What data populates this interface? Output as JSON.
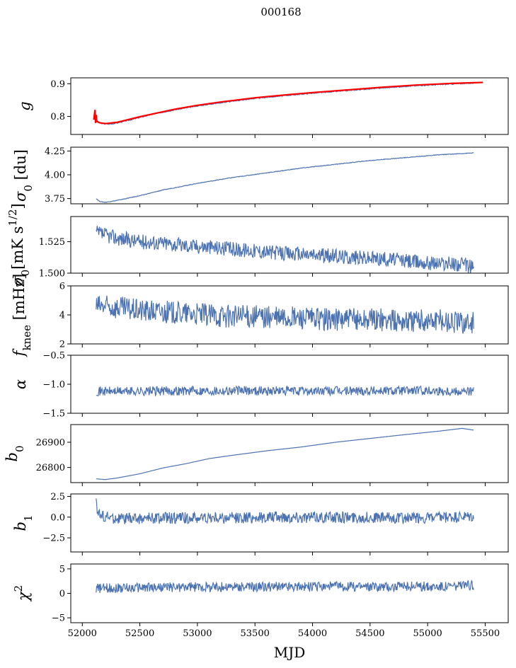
{
  "figure": {
    "title": "000168",
    "xlabel": "MJD",
    "colors": {
      "series": "#4c72b0",
      "model": "#ff0000",
      "axes": "#000000"
    }
  },
  "chart_data": [
    {
      "type": "line",
      "ylabel": "g",
      "ylabel_parts": [
        {
          "t": "g",
          "italic": true
        }
      ],
      "xlim": [
        51900,
        55700
      ],
      "ylim": [
        0.745,
        0.918
      ],
      "yticks": [
        0.8,
        0.9
      ],
      "yticklabels": [
        "0.8",
        "0.9"
      ],
      "x": [
        52100,
        52150,
        52200,
        52250,
        52300,
        52400,
        52500,
        52600,
        52800,
        53000,
        53200,
        53500,
        53800,
        54000,
        54300,
        54600,
        54900,
        55200,
        55400
      ],
      "series": [
        {
          "values": [
            0.797,
            0.78,
            0.777,
            0.777,
            0.78,
            0.788,
            0.797,
            0.806,
            0.82,
            0.832,
            0.842,
            0.855,
            0.865,
            0.871,
            0.879,
            0.887,
            0.894,
            0.899,
            0.902
          ]
        }
      ],
      "overlay": {
        "color": "#ff0000",
        "x": [
          52100,
          52110,
          52115,
          52120,
          52125,
          52150,
          52200,
          52300,
          52500,
          52800,
          53000,
          53200,
          53500,
          53800,
          54000,
          54300,
          54600,
          54900,
          55200,
          55480
        ],
        "values": [
          0.79,
          0.82,
          0.78,
          0.805,
          0.785,
          0.781,
          0.778,
          0.782,
          0.799,
          0.822,
          0.834,
          0.844,
          0.857,
          0.867,
          0.873,
          0.881,
          0.889,
          0.896,
          0.901,
          0.904
        ]
      }
    },
    {
      "type": "line",
      "ylabel": "σ0 [du]",
      "ylabel_parts": [
        {
          "t": "σ",
          "italic": true
        },
        {
          "t": "0",
          "sub": true
        },
        {
          "t": " [du]"
        }
      ],
      "xlim": [
        51900,
        55700
      ],
      "ylim": [
        3.695,
        4.29
      ],
      "yticks": [
        3.75,
        4.0,
        4.25
      ],
      "yticklabels": [
        "3.75",
        "4.00",
        "4.25"
      ],
      "x": [
        52120,
        52150,
        52200,
        52300,
        52500,
        52700,
        53000,
        53300,
        53600,
        53900,
        54200,
        54500,
        54800,
        55100,
        55400
      ],
      "series": [
        {
          "values": [
            3.75,
            3.72,
            3.71,
            3.73,
            3.78,
            3.84,
            3.91,
            3.97,
            4.02,
            4.07,
            4.11,
            4.15,
            4.18,
            4.21,
            4.23
          ]
        }
      ]
    },
    {
      "type": "line",
      "ylabel": "σ0[mK s1/2]",
      "ylabel_parts": [
        {
          "t": "σ",
          "italic": true
        },
        {
          "t": "0",
          "sub": true
        },
        {
          "t": "[mK s"
        },
        {
          "t": "1/2",
          "sup": true
        },
        {
          "t": "]"
        }
      ],
      "xlim": [
        51900,
        55700
      ],
      "ylim": [
        1.5,
        1.545
      ],
      "yticks": [
        1.5,
        1.525
      ],
      "yticklabels": [
        "1.500",
        "1.525"
      ],
      "x": [
        52120,
        52300,
        52500,
        52700,
        52900,
        53100,
        53300,
        53500,
        53700,
        53900,
        54100,
        54300,
        54500,
        54700,
        54900,
        55100,
        55300,
        55400
      ],
      "series": [
        {
          "values": [
            1.532,
            1.528,
            1.525,
            1.524,
            1.522,
            1.521,
            1.519,
            1.518,
            1.516,
            1.515,
            1.514,
            1.513,
            1.512,
            1.511,
            1.509,
            1.508,
            1.507,
            1.505
          ]
        }
      ]
    },
    {
      "type": "line",
      "ylabel": "fknee [mHz]",
      "ylabel_parts": [
        {
          "t": "f",
          "italic": true
        },
        {
          "t": "knee",
          "sub": true
        },
        {
          "t": " [mHz]"
        }
      ],
      "xlim": [
        51900,
        55700
      ],
      "ylim": [
        2,
        6
      ],
      "yticks": [
        2,
        4,
        6
      ],
      "yticklabels": [
        "2",
        "4",
        "6"
      ],
      "x": [
        52120,
        52300,
        52500,
        52700,
        52900,
        53100,
        53300,
        53500,
        53700,
        53900,
        54100,
        54300,
        54500,
        54700,
        54900,
        55100,
        55300,
        55400
      ],
      "series": [
        {
          "values": [
            4.6,
            4.5,
            4.3,
            4.2,
            4.1,
            4.0,
            3.9,
            3.9,
            3.8,
            3.8,
            3.7,
            3.7,
            3.7,
            3.6,
            3.6,
            3.6,
            3.5,
            3.5
          ]
        }
      ]
    },
    {
      "type": "line",
      "ylabel": "α",
      "ylabel_parts": [
        {
          "t": "α",
          "italic": true
        }
      ],
      "xlim": [
        51900,
        55700
      ],
      "ylim": [
        -1.5,
        -0.5
      ],
      "yticks": [
        -1.5,
        -1.0,
        -0.5
      ],
      "yticklabels": [
        "−1.5",
        "−1.0",
        "−0.5"
      ],
      "x": [
        52120,
        52500,
        53000,
        53500,
        54000,
        54500,
        55000,
        55400
      ],
      "series": [
        {
          "values": [
            -1.12,
            -1.12,
            -1.11,
            -1.11,
            -1.12,
            -1.11,
            -1.11,
            -1.12
          ]
        }
      ]
    },
    {
      "type": "line",
      "ylabel": "b0",
      "ylabel_parts": [
        {
          "t": "b",
          "italic": true
        },
        {
          "t": "0",
          "sub": true
        }
      ],
      "xlim": [
        51900,
        55700
      ],
      "ylim": [
        26740,
        26970
      ],
      "yticks": [
        26800,
        26900
      ],
      "yticklabels": [
        "26800",
        "26900"
      ],
      "x": [
        52120,
        52200,
        52300,
        52500,
        52700,
        52900,
        53100,
        53300,
        53600,
        53900,
        54200,
        54500,
        54800,
        55100,
        55300,
        55400
      ],
      "series": [
        {
          "values": [
            26755,
            26752,
            26758,
            26775,
            26798,
            26815,
            26835,
            26848,
            26866,
            26881,
            26900,
            26915,
            26930,
            26944,
            26955,
            26948
          ]
        }
      ]
    },
    {
      "type": "line",
      "ylabel": "b1",
      "ylabel_parts": [
        {
          "t": "b",
          "italic": true
        },
        {
          "t": "1",
          "sub": true
        }
      ],
      "xlim": [
        51900,
        55700
      ],
      "ylim": [
        -4.2,
        2.8
      ],
      "yticks": [
        -2.5,
        0.0,
        2.5
      ],
      "yticklabels": [
        "−2.5",
        "0.0",
        "2.5"
      ],
      "x": [
        52120,
        52130,
        52150,
        52300,
        52700,
        53200,
        53700,
        54200,
        54700,
        55100,
        55400
      ],
      "series": [
        {
          "values": [
            2.4,
            1.0,
            0.2,
            -0.2,
            -0.1,
            -0.1,
            0.0,
            0.0,
            -0.1,
            -0.1,
            0.0
          ]
        }
      ]
    },
    {
      "type": "line",
      "ylabel": "χ2",
      "ylabel_parts": [
        {
          "t": "χ",
          "italic": true
        },
        {
          "t": "2",
          "sup": true
        }
      ],
      "xlim": [
        51900,
        55700
      ],
      "ylim": [
        -6,
        6
      ],
      "yticks": [
        -5,
        0,
        5
      ],
      "yticklabels": [
        "−5",
        "0",
        "5"
      ],
      "xticks": [
        52000,
        52500,
        53000,
        53500,
        54000,
        54500,
        55000,
        55500
      ],
      "xticklabels": [
        "52000",
        "52500",
        "53000",
        "53500",
        "54000",
        "54500",
        "55000",
        "55500"
      ],
      "x": [
        52120,
        52500,
        53000,
        53500,
        54000,
        54500,
        55000,
        55400
      ],
      "series": [
        {
          "values": [
            1.0,
            1.2,
            1.3,
            1.3,
            1.4,
            1.4,
            1.4,
            1.6
          ]
        }
      ]
    }
  ]
}
